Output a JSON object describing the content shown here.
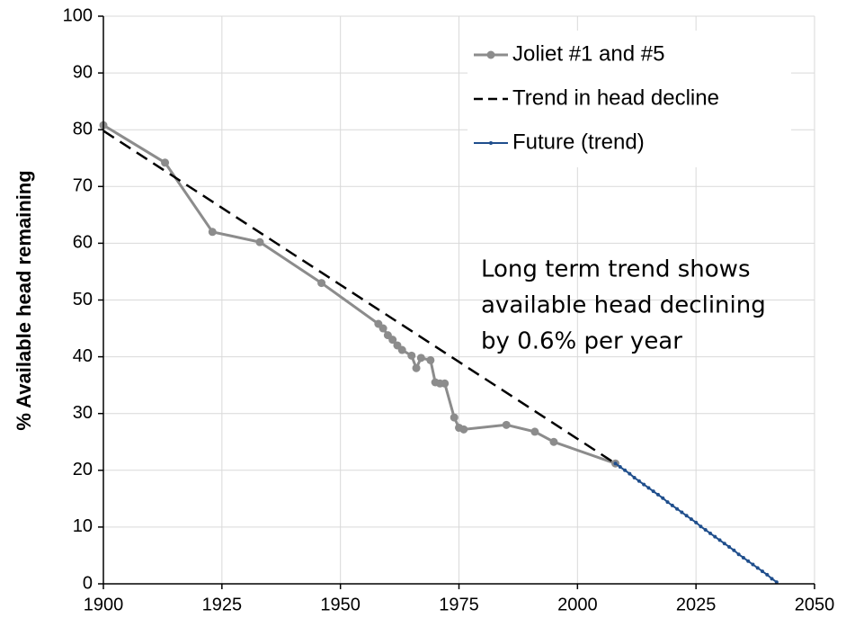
{
  "chart_data": {
    "type": "line",
    "ylabel": "% Available head remaining",
    "xlim": [
      1900,
      2050
    ],
    "xticks": [
      1900,
      1925,
      1950,
      1975,
      2000,
      2025,
      2050
    ],
    "ylim": [
      0,
      100
    ],
    "yticks": [
      0,
      10,
      20,
      30,
      40,
      50,
      60,
      70,
      80,
      90,
      100
    ],
    "grid": true,
    "legend": "upper right",
    "annotation": [
      "Long term trend shows",
      "available head declining",
      "by 0.6% per year"
    ],
    "series": [
      {
        "name": "Joliet #1 and #5",
        "color": "#8c8c8c",
        "style": "solid-marker",
        "x": [
          1900,
          1913,
          1923,
          1933,
          1946,
          1958,
          1959,
          1960,
          1961,
          1962,
          1963,
          1965,
          1966,
          1967,
          1969,
          1970,
          1971,
          1972,
          1974,
          1975,
          1976,
          1985,
          1991,
          1995,
          2008
        ],
        "values": [
          80.8,
          74.2,
          62,
          60.2,
          53,
          45.8,
          45,
          43.8,
          43,
          42,
          41.2,
          40.2,
          38,
          39.8,
          39.4,
          35.5,
          35.3,
          35.3,
          29.3,
          27.5,
          27.2,
          28,
          26.8,
          25,
          21.2
        ]
      },
      {
        "name": "Trend in head decline",
        "color": "#000000",
        "style": "dashed",
        "x": [
          1900,
          2008
        ],
        "values": [
          79.8,
          21.2
        ]
      },
      {
        "name": "Future (trend)",
        "color": "#1f4e8c",
        "style": "small-marker",
        "x": [
          2008,
          2009,
          2010,
          2011,
          2012,
          2013,
          2014,
          2015,
          2016,
          2017,
          2018,
          2019,
          2020,
          2021,
          2022,
          2023,
          2024,
          2025,
          2026,
          2027,
          2028,
          2029,
          2030,
          2031,
          2032,
          2033,
          2034,
          2035,
          2036,
          2037,
          2038,
          2039,
          2040,
          2041,
          2042
        ],
        "values": [
          21.2,
          20.6,
          20.0,
          19.4,
          18.7,
          18.1,
          17.5,
          16.9,
          16.3,
          15.7,
          15.1,
          14.4,
          13.8,
          13.2,
          12.6,
          12.0,
          11.4,
          10.8,
          10.1,
          9.5,
          8.9,
          8.3,
          7.7,
          7.1,
          6.5,
          5.9,
          5.2,
          4.6,
          4.0,
          3.4,
          2.8,
          2.2,
          1.6,
          0.9,
          0.3
        ]
      }
    ]
  }
}
